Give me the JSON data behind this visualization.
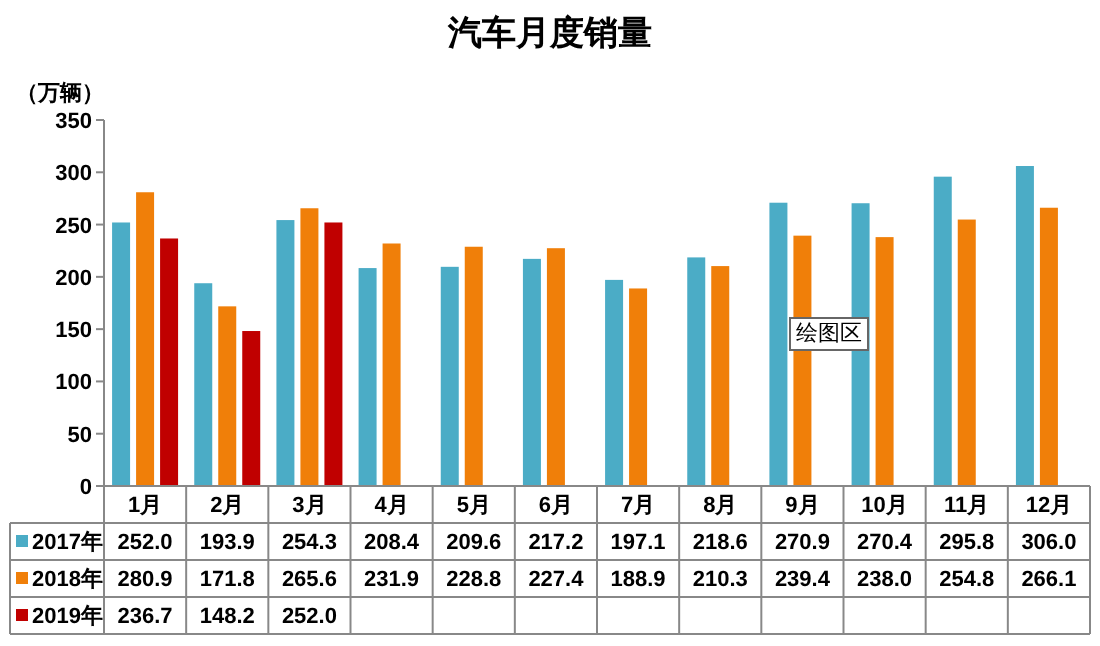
{
  "chart_data": {
    "type": "bar",
    "title": "汽车月度销量",
    "ylabel": "（万辆）",
    "categories": [
      "1月",
      "2月",
      "3月",
      "4月",
      "5月",
      "6月",
      "7月",
      "8月",
      "9月",
      "10月",
      "11月",
      "12月"
    ],
    "series": [
      {
        "name": "2017年",
        "color": "#4bacc6",
        "values": [
          252.0,
          193.9,
          254.3,
          208.4,
          209.6,
          217.2,
          197.1,
          218.6,
          270.9,
          270.4,
          295.8,
          306.0
        ],
        "value_labels": [
          "252.0",
          "193.9",
          "254.3",
          "208.4",
          "209.6",
          "217.2",
          "197.1",
          "218.6",
          "270.9",
          "270.4",
          "295.8",
          "306.0"
        ]
      },
      {
        "name": "2018年",
        "color": "#f07f09",
        "values": [
          280.9,
          171.8,
          265.6,
          231.9,
          228.8,
          227.4,
          188.9,
          210.3,
          239.4,
          238.0,
          254.8,
          266.1
        ],
        "value_labels": [
          "280.9",
          "171.8",
          "265.6",
          "231.9",
          "228.8",
          "227.4",
          "188.9",
          "210.3",
          "239.4",
          "238.0",
          "254.8",
          "266.1"
        ]
      },
      {
        "name": "2019年",
        "color": "#c00000",
        "values": [
          236.7,
          148.2,
          252.0,
          null,
          null,
          null,
          null,
          null,
          null,
          null,
          null,
          null
        ],
        "value_labels": [
          "236.7",
          "148.2",
          "252.0",
          null,
          null,
          null,
          null,
          null,
          null,
          null,
          null,
          null
        ]
      }
    ],
    "ylim": [
      0,
      350
    ],
    "yticks": [
      0,
      50,
      100,
      150,
      200,
      250,
      300,
      350
    ],
    "legend": "bottom",
    "annotations": [
      "绘图区"
    ]
  }
}
